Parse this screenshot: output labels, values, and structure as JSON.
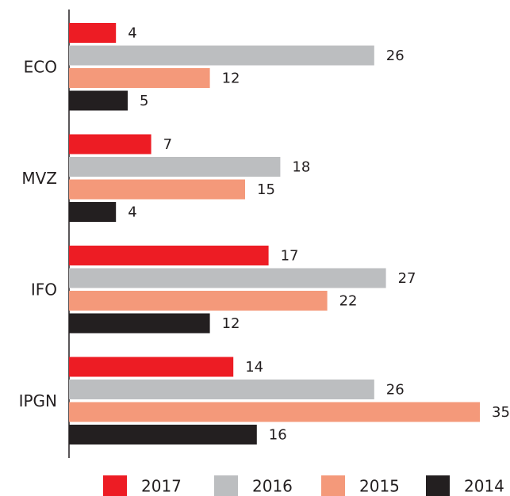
{
  "chart_data": {
    "type": "barh",
    "categories": [
      "ECO",
      "MVZ",
      "IFO",
      "IPGN"
    ],
    "series": [
      {
        "name": "2017",
        "color": "#ed1c24",
        "values": [
          4,
          7,
          17,
          14
        ]
      },
      {
        "name": "2016",
        "color": "#bcbec0",
        "values": [
          26,
          18,
          27,
          26
        ]
      },
      {
        "name": "2015",
        "color": "#f4997a",
        "values": [
          12,
          15,
          22,
          35
        ]
      },
      {
        "name": "2014",
        "color": "#231f20",
        "values": [
          5,
          4,
          12,
          16
        ]
      }
    ],
    "xlim": [
      0,
      35
    ],
    "legend": "bottom"
  }
}
